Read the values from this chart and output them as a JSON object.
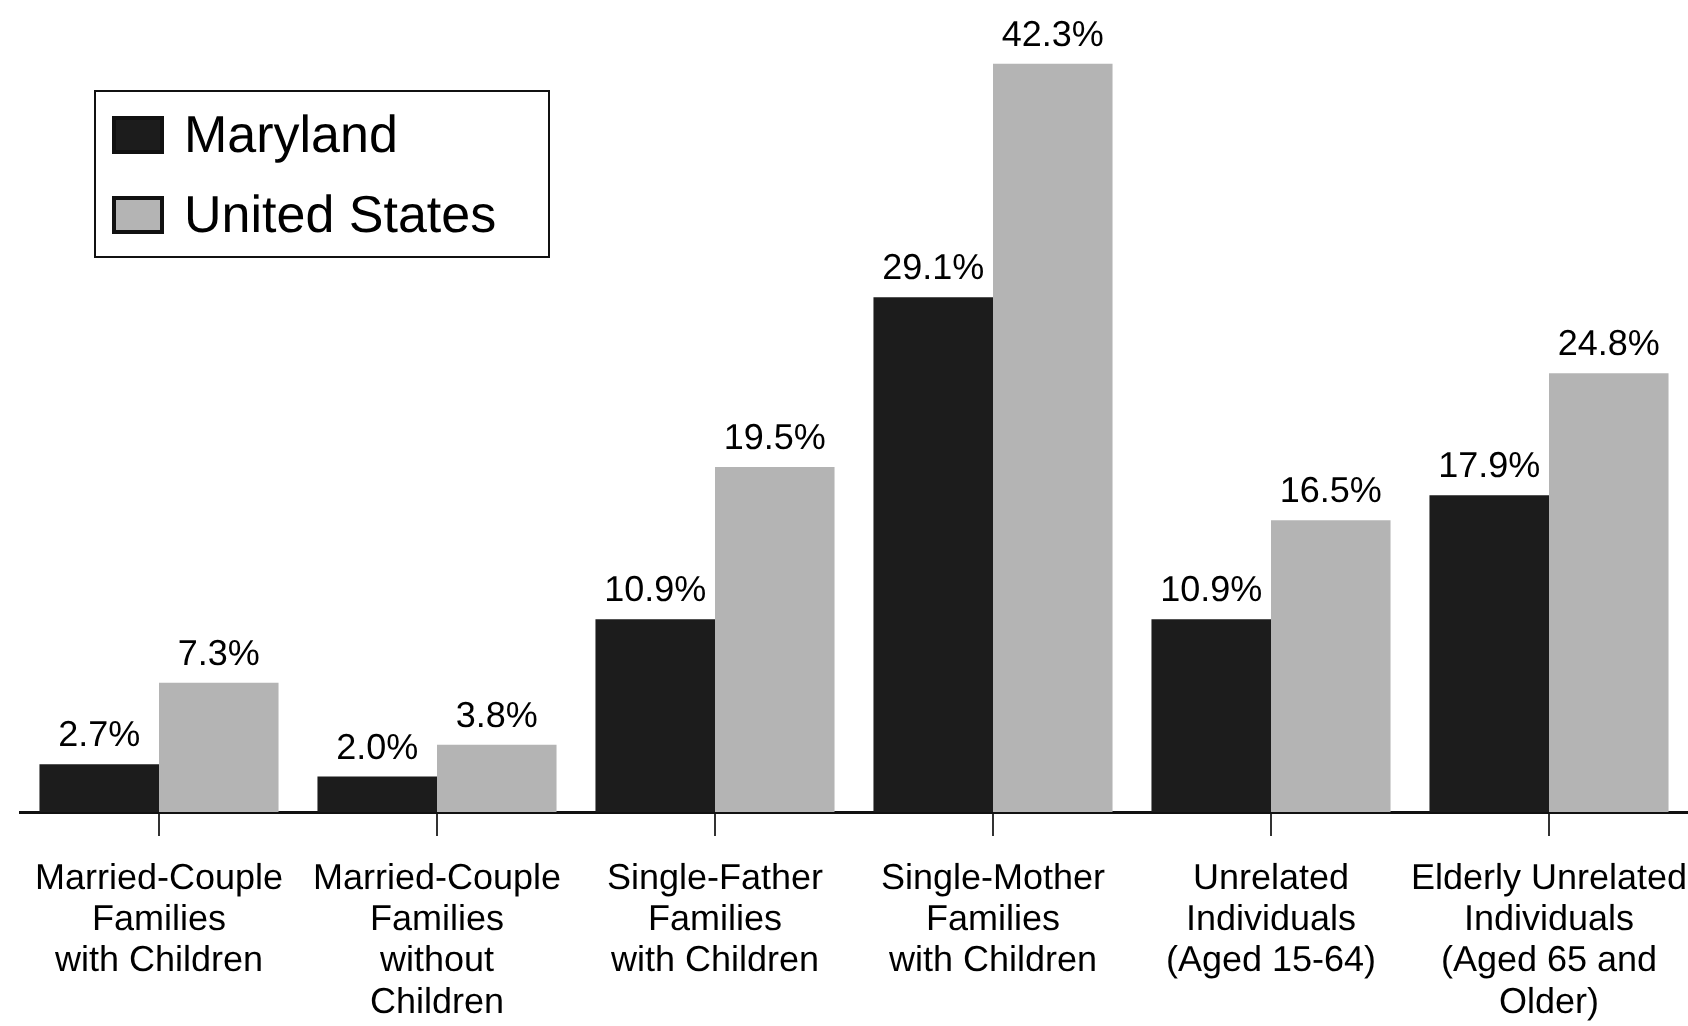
{
  "chart_data": {
    "type": "bar",
    "categories": [
      "Married-Couple\nFamilies\nwith Children",
      "Married-Couple\nFamilies\nwithout\nChildren",
      "Single-Father\nFamilies\nwith Children",
      "Single-Mother\nFamilies\nwith Children",
      "Unrelated\nIndividuals\n(Aged 15-64)",
      "Elderly Unrelated\nIndividuals\n(Aged 65 and\nOlder)"
    ],
    "series": [
      {
        "name": "Maryland",
        "color": "#1c1c1c",
        "values": [
          2.7,
          2.0,
          10.9,
          29.1,
          10.9,
          17.9
        ],
        "value_labels": [
          "2.7%",
          "2.0%",
          "10.9%",
          "29.1%",
          "10.9%",
          "17.9%"
        ]
      },
      {
        "name": "United States",
        "color": "#b4b4b4",
        "values": [
          7.3,
          3.8,
          19.5,
          42.3,
          16.5,
          24.8
        ],
        "value_labels": [
          "7.3%",
          "3.8%",
          "19.5%",
          "42.3%",
          "16.5%",
          "24.8%"
        ]
      }
    ],
    "legend": "top left",
    "grid": false
  }
}
